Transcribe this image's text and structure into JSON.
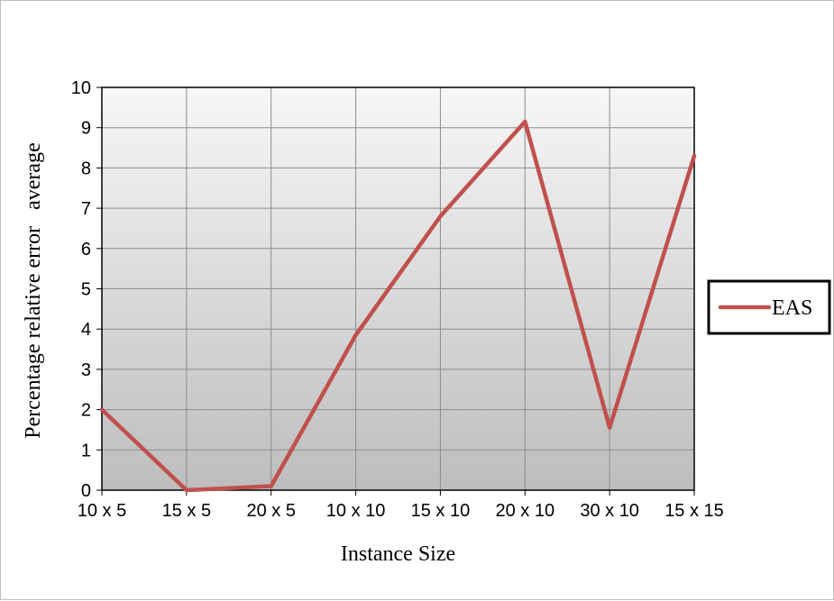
{
  "chart_data": {
    "type": "line",
    "title": "",
    "xlabel": "Instance Size",
    "ylabel": "Percentage relative error   average",
    "categories": [
      "10 x 5",
      "15 x 5",
      "20 x 5",
      "10 x 10",
      "15 x 10",
      "20 x 10",
      "30 x 10",
      "15 x 15"
    ],
    "series": [
      {
        "name": "EAS",
        "values": [
          2.0,
          0.0,
          0.1,
          3.85,
          6.8,
          9.15,
          1.55,
          8.3
        ],
        "color": "#c0504d"
      }
    ],
    "ylim": [
      0,
      10
    ],
    "yticks": [
      0,
      1,
      2,
      3,
      4,
      5,
      6,
      7,
      8,
      9,
      10
    ],
    "grid": true,
    "legend_position": "right",
    "plot_background": "gradient light-to-dark gray"
  }
}
